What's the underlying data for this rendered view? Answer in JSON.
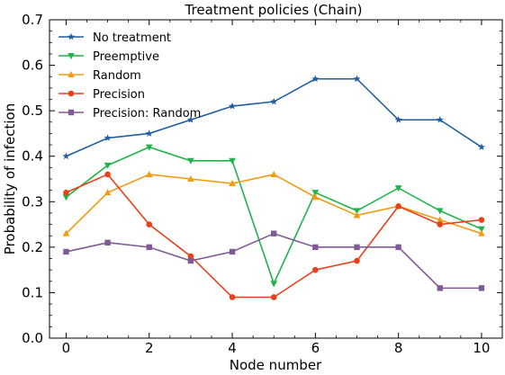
{
  "chart_data": {
    "type": "line",
    "title": "Treatment policies (Chain)",
    "xlabel": "Node number",
    "ylabel": "Probability of infection",
    "xlim": [
      -0.4,
      10.5
    ],
    "ylim": [
      0,
      0.7
    ],
    "xticks": [
      0,
      2,
      4,
      6,
      8,
      10
    ],
    "yticks": [
      0.0,
      0.1,
      0.2,
      0.3,
      0.4,
      0.5,
      0.6,
      0.7
    ],
    "xtick_labels": [
      "0",
      "2",
      "4",
      "6",
      "8",
      "10"
    ],
    "ytick_labels": [
      "0.0",
      "0.1",
      "0.2",
      "0.3",
      "0.4",
      "0.5",
      "0.6",
      "0.7"
    ],
    "grid": false,
    "legend_position": "top-left",
    "x": [
      0,
      1,
      2,
      3,
      4,
      5,
      6,
      7,
      8,
      9,
      10
    ],
    "series": [
      {
        "name": "No treatment",
        "color": "#1f5fa0",
        "marker": "star",
        "values": [
          0.4,
          0.44,
          0.45,
          0.48,
          0.51,
          0.52,
          0.57,
          0.57,
          0.48,
          0.48,
          0.42
        ]
      },
      {
        "name": "Preemptive",
        "color": "#1fb34a",
        "marker": "triangle-down",
        "values": [
          0.31,
          0.38,
          0.42,
          0.39,
          0.39,
          0.12,
          0.32,
          0.28,
          0.33,
          0.28,
          0.24
        ]
      },
      {
        "name": "Random",
        "color": "#f29b12",
        "marker": "triangle-up",
        "values": [
          0.23,
          0.32,
          0.36,
          0.35,
          0.34,
          0.36,
          0.31,
          0.27,
          0.29,
          0.26,
          0.23
        ]
      },
      {
        "name": "Precision",
        "color": "#e8401a",
        "marker": "circle",
        "values": [
          0.32,
          0.36,
          0.25,
          0.18,
          0.09,
          0.09,
          0.15,
          0.17,
          0.29,
          0.25,
          0.26
        ]
      },
      {
        "name": "Precision: Random",
        "color": "#7f5a96",
        "marker": "square",
        "values": [
          0.19,
          0.21,
          0.2,
          0.17,
          0.19,
          0.23,
          0.2,
          0.2,
          0.2,
          0.11,
          0.11
        ]
      }
    ]
  }
}
